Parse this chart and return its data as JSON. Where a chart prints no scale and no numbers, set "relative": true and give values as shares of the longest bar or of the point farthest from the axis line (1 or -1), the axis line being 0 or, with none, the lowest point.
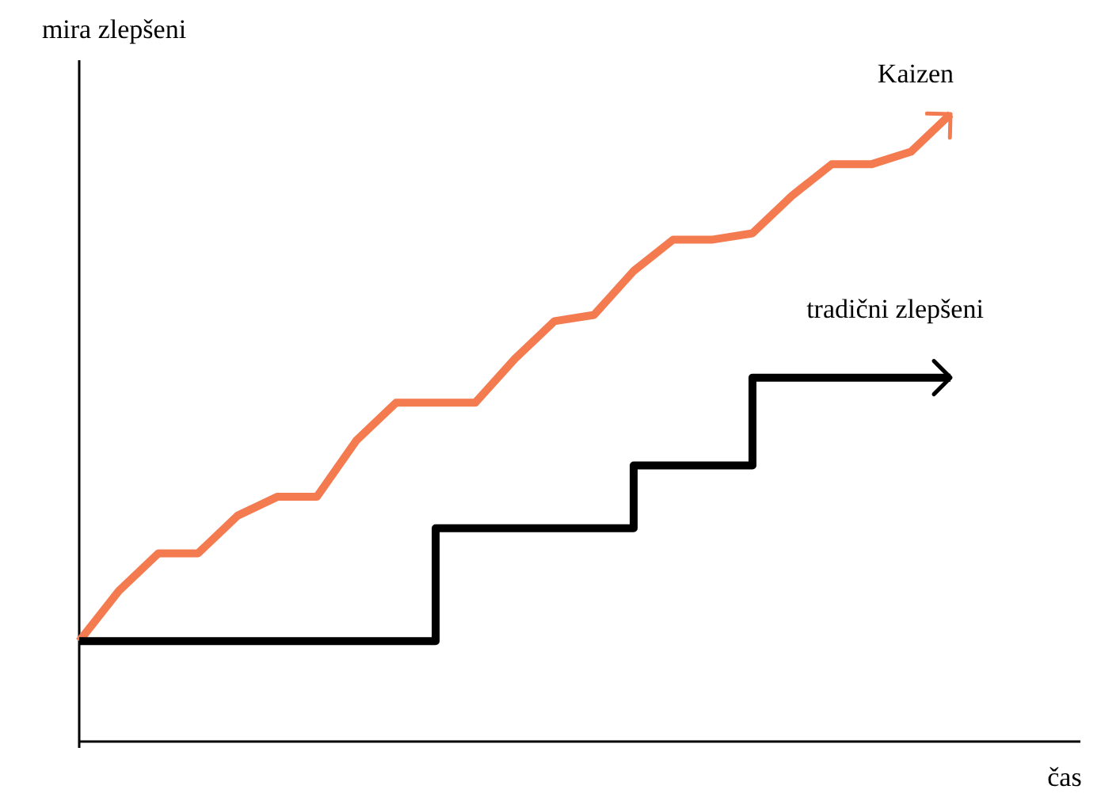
{
  "chart_data": {
    "type": "line",
    "xlabel": "čas",
    "ylabel": "mira zlepšeni",
    "relative": true,
    "categories": [
      null,
      null,
      null,
      null,
      null,
      null,
      null,
      null,
      null,
      null,
      null,
      null,
      null,
      null,
      null,
      null,
      null,
      null,
      null,
      null,
      null,
      null,
      null
    ],
    "series": [
      {
        "name": "Kaizen",
        "color": "#f47a50",
        "type": "line",
        "values": [
          0.16,
          0.24,
          0.3,
          0.3,
          0.36,
          0.39,
          0.39,
          0.48,
          0.54,
          0.54,
          0.54,
          0.61,
          0.67,
          0.68,
          0.75,
          0.8,
          0.8,
          0.81,
          0.87,
          0.92,
          0.92,
          0.94,
          1
        ]
      },
      {
        "name": "tradični zlepšeni",
        "color": "#000000",
        "type": "step",
        "values": [
          0.16,
          0.16,
          0.16,
          0.16,
          0.16,
          0.16,
          0.16,
          0.16,
          0.16,
          0.34,
          0.34,
          0.34,
          0.34,
          0.34,
          0.44,
          0.44,
          0.44,
          0.58,
          0.58,
          0.58,
          0.58,
          0.58,
          0.58
        ]
      }
    ]
  }
}
